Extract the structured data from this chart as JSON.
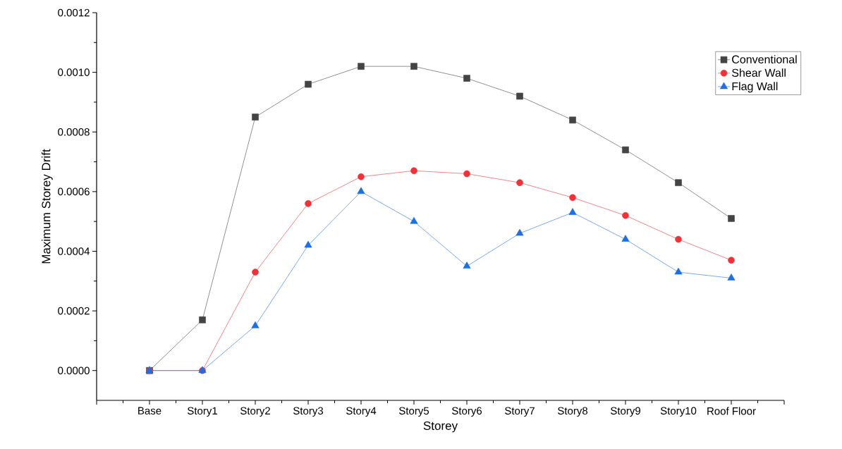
{
  "chart_data": {
    "type": "line",
    "xlabel": "Storey",
    "ylabel": "Maximum Storey Drift",
    "categories": [
      "Base",
      "Story1",
      "Story2",
      "Story3",
      "Story4",
      "Story5",
      "Story6",
      "Story7",
      "Story8",
      "Story9",
      "Story10",
      "Roof Floor"
    ],
    "series": [
      {
        "name": "Conventional",
        "color": "#444444",
        "marker": "square",
        "values": [
          0,
          0.00017,
          0.00085,
          0.00096,
          0.00102,
          0.00102,
          0.00098,
          0.00092,
          0.00084,
          0.00074,
          0.00063,
          0.00051
        ]
      },
      {
        "name": "Shear Wall",
        "color": "#ee3338",
        "marker": "circle",
        "values": [
          0,
          0,
          0.00033,
          0.00056,
          0.00065,
          0.00067,
          0.00066,
          0.00063,
          0.00058,
          0.00052,
          0.00044,
          0.00037
        ]
      },
      {
        "name": "Flag Wall",
        "color": "#1e6fe0",
        "marker": "triangle",
        "values": [
          0,
          0,
          0.00015,
          0.00042,
          0.0006,
          0.0005,
          0.00035,
          0.00046,
          0.00053,
          0.00044,
          0.00033,
          0.00031
        ]
      }
    ],
    "ylim": [
      -0.0001,
      0.0012
    ],
    "yticks": [
      {
        "value": 0,
        "label": "0.0000"
      },
      {
        "value": 0.0002,
        "label": "0.0002"
      },
      {
        "value": 0.0004,
        "label": "0.0004"
      },
      {
        "value": 0.0006,
        "label": "0.0006"
      },
      {
        "value": 0.0008,
        "label": "0.0008"
      },
      {
        "value": 0.001,
        "label": "0.0010"
      },
      {
        "value": 0.0012,
        "label": "0.0012"
      }
    ],
    "legend": "top right",
    "grid": false,
    "line_style": "solid"
  }
}
